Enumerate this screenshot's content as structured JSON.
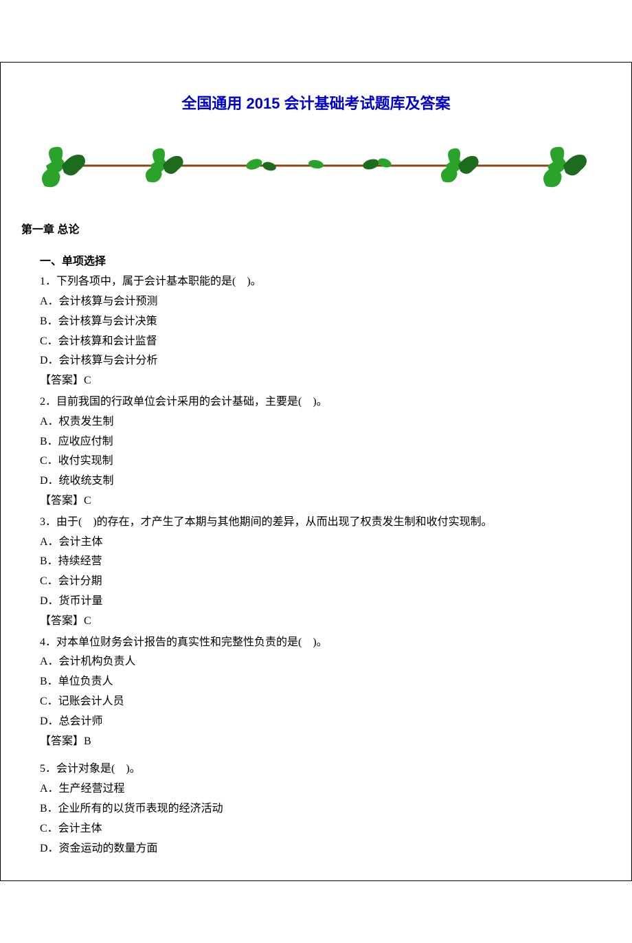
{
  "title": "全国通用 2015 会计基础考试题库及答案",
  "title_color": "#0000cc",
  "chapter": "第一章  总论",
  "section": "一、单项选择",
  "decoration": {
    "leaf_color": "#29a329",
    "leaf_dark": "#1d6b1d",
    "stem_color": "#8b4513"
  },
  "questions": [
    {
      "q": "1．下列各项中，属于会计基本职能的是(　)。",
      "opts": {
        "A": "A．会计核算与会计预测",
        "B": "B．会计核算与会计决策",
        "C": "C．会计核算和会计监督",
        "D": "D．会计核算与会计分析"
      },
      "ans": "【答案】C"
    },
    {
      "q": "2．目前我国的行政单位会计采用的会计基础，主要是(　)。",
      "opts": {
        "A": "A．权责发生制",
        "B": "B．应收应付制",
        "C": "C．收付实现制",
        "D": "D．统收统支制"
      },
      "ans": "【答案】C"
    },
    {
      "q": "3．由于(　)的存在，才产生了本期与其他期间的差异，从而出现了权责发生制和收付实现制。",
      "wrap": true,
      "opts": {
        "A": "A．会计主体",
        "B": "B．持续经营",
        "C": "C．会计分期",
        "D": "D．货币计量"
      },
      "ans": "【答案】C"
    },
    {
      "q": "4．对本单位财务会计报告的真实性和完整性负责的是(　)。",
      "opts": {
        "A": "A．会计机构负责人",
        "B": "B．单位负责人",
        "C": "C．记账会计人员",
        "D": "D．总会计师"
      },
      "ans": "【答案】B"
    },
    {
      "q": "5．会计对象是(　)。",
      "gap_before": true,
      "opts": {
        "A": "A．生产经营过程",
        "B": "B．企业所有的以货币表现的经济活动",
        "C": "C．会计主体",
        "D": "D．资金运动的数量方面"
      }
    }
  ]
}
